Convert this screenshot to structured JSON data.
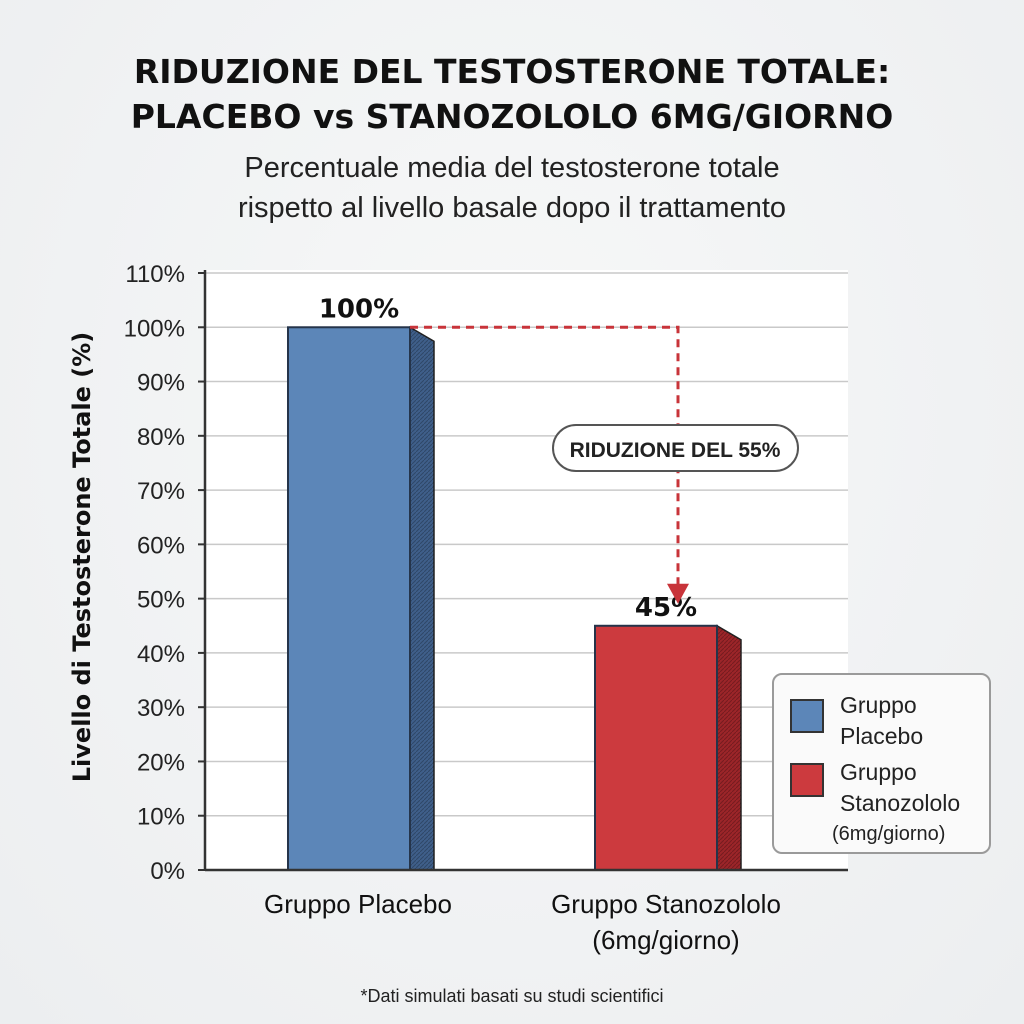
{
  "header": {
    "title_line1": "RIDUZIONE DEL TESTOSTERONE TOTALE:",
    "title_line2": "PLACEBO vs STANOZOLOLO 6MG/GIORNO",
    "subtitle_line1": "Percentuale media del testosterone totale",
    "subtitle_line2": "rispetto al livello basale dopo il trattamento"
  },
  "chart_data": {
    "type": "bar",
    "categories": [
      "Gruppo Placebo",
      "Gruppo Stanozololo (6mg/giorno)"
    ],
    "category_lines": [
      [
        "Gruppo Placebo"
      ],
      [
        "Gruppo Stanozololo",
        "(6mg/giorno)"
      ]
    ],
    "values": [
      100,
      45
    ],
    "value_labels": [
      "100%",
      "45%"
    ],
    "colors": [
      "#5c86b8",
      "#cc3a3e"
    ],
    "ylabel": "Livello di Testosterone Totale (%)",
    "ylim": [
      0,
      110
    ],
    "yticks": [
      "0%",
      "10%",
      "20%",
      "30%",
      "40%",
      "50%",
      "60%",
      "70%",
      "80%",
      "90%",
      "100%",
      "110%"
    ],
    "grid": true,
    "annotation": "RIDUZIONE DEL 55%",
    "legend_position": "bottom-right",
    "legend": [
      {
        "lines": [
          "Gruppo",
          "Placebo"
        ],
        "color": "#5c86b8"
      },
      {
        "lines": [
          "Gruppo",
          "Stanozololo",
          "(6mg/giorno)"
        ],
        "color": "#cc3a3e"
      }
    ]
  },
  "footnote": "*Dati simulati basati su studi scientifici"
}
